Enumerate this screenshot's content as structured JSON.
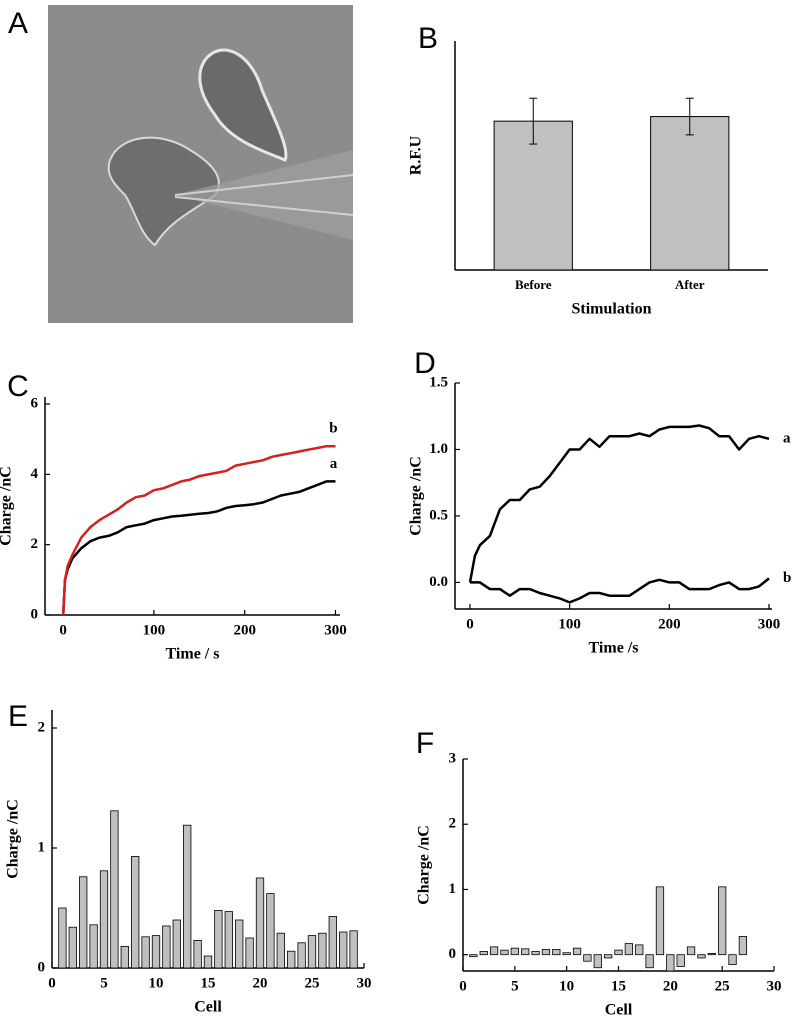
{
  "chart_data": [
    {
      "type": "image",
      "label": "A"
    },
    {
      "type": "bar",
      "label": "B",
      "ylabel": "R.F.U",
      "xlabel": "Stimulation",
      "categories": [
        "Before",
        "After"
      ],
      "values": [
        1.3,
        1.34
      ],
      "errors": [
        0.2,
        0.16
      ],
      "color": "#c0c0c0",
      "ylim": [
        0,
        2
      ]
    },
    {
      "type": "line",
      "label": "C",
      "xlabel": "Time / s",
      "ylabel": "Charge /nC",
      "xlim": [
        -20,
        305
      ],
      "ylim": [
        0,
        6.2
      ],
      "xticks": [
        0,
        100,
        200,
        300
      ],
      "yticks": [
        0,
        2,
        4,
        6
      ],
      "x": [
        0,
        2,
        5,
        10,
        20,
        30,
        40,
        50,
        60,
        70,
        80,
        90,
        100,
        110,
        120,
        130,
        140,
        150,
        160,
        170,
        180,
        190,
        200,
        210,
        220,
        230,
        240,
        250,
        260,
        270,
        280,
        290,
        300
      ],
      "series": [
        {
          "name": "a",
          "color": "#000000",
          "values": [
            0,
            1.0,
            1.3,
            1.6,
            1.9,
            2.1,
            2.2,
            2.25,
            2.35,
            2.5,
            2.55,
            2.6,
            2.7,
            2.75,
            2.8,
            2.82,
            2.85,
            2.88,
            2.9,
            2.95,
            3.05,
            3.1,
            3.12,
            3.15,
            3.2,
            3.3,
            3.4,
            3.45,
            3.5,
            3.6,
            3.7,
            3.8,
            3.8
          ]
        },
        {
          "name": "b",
          "color": "#d62020",
          "values": [
            0,
            1.0,
            1.4,
            1.7,
            2.2,
            2.5,
            2.7,
            2.85,
            3.0,
            3.2,
            3.35,
            3.4,
            3.55,
            3.6,
            3.7,
            3.8,
            3.85,
            3.95,
            4.0,
            4.05,
            4.1,
            4.25,
            4.3,
            4.35,
            4.4,
            4.5,
            4.55,
            4.6,
            4.65,
            4.7,
            4.75,
            4.8,
            4.8
          ]
        }
      ]
    },
    {
      "type": "line",
      "label": "D",
      "xlabel": "Time /s",
      "ylabel": "Charge /nC",
      "xlim": [
        -15,
        303
      ],
      "ylim": [
        -0.2,
        1.5
      ],
      "xticks": [
        0,
        100,
        200,
        300
      ],
      "yticks": [
        {
          "value": 0,
          "label": "0.0"
        },
        {
          "value": 0.5,
          "label": "0.5"
        },
        {
          "value": 1,
          "label": "1.0"
        },
        {
          "value": 1.5,
          "label": "1.5"
        }
      ],
      "x": [
        0,
        5,
        10,
        20,
        30,
        40,
        50,
        60,
        70,
        80,
        90,
        100,
        110,
        120,
        130,
        140,
        150,
        160,
        170,
        180,
        190,
        200,
        210,
        220,
        230,
        240,
        250,
        260,
        270,
        280,
        290,
        300
      ],
      "series": [
        {
          "name": "a",
          "color": "#000000",
          "values": [
            0,
            0.2,
            0.28,
            0.35,
            0.55,
            0.62,
            0.62,
            0.7,
            0.72,
            0.8,
            0.9,
            1.0,
            1.0,
            1.08,
            1.02,
            1.1,
            1.1,
            1.1,
            1.12,
            1.1,
            1.15,
            1.17,
            1.17,
            1.17,
            1.18,
            1.16,
            1.1,
            1.1,
            1.0,
            1.08,
            1.1,
            1.08
          ]
        },
        {
          "name": "b",
          "color": "#000000",
          "values": [
            0,
            0,
            0,
            -0.05,
            -0.05,
            -0.1,
            -0.05,
            -0.05,
            -0.08,
            -0.1,
            -0.12,
            -0.15,
            -0.12,
            -0.08,
            -0.08,
            -0.1,
            -0.1,
            -0.1,
            -0.05,
            0.0,
            0.02,
            0.0,
            0.0,
            -0.05,
            -0.05,
            -0.05,
            -0.02,
            0.0,
            -0.05,
            -0.05,
            -0.03,
            0.03
          ]
        }
      ]
    },
    {
      "type": "bar",
      "label": "E",
      "xlabel": "Cell",
      "ylabel": "Charge /nC",
      "xlim": [
        0,
        30
      ],
      "ylim": [
        0,
        2.15
      ],
      "xticks": [
        0,
        5,
        10,
        15,
        20,
        25,
        30
      ],
      "yticks": [
        0,
        1,
        2
      ],
      "color": "#c0c0c0",
      "x": [
        1,
        2,
        3,
        4,
        5,
        6,
        7,
        8,
        9,
        10,
        11,
        12,
        13,
        14,
        15,
        16,
        17,
        18,
        19,
        20,
        21,
        22,
        23,
        24,
        25,
        26,
        27,
        28,
        29
      ],
      "values": [
        0.5,
        0.34,
        0.76,
        0.36,
        0.81,
        1.31,
        0.18,
        0.93,
        0.26,
        0.27,
        0.35,
        0.4,
        1.19,
        0.23,
        0.1,
        0.48,
        0.47,
        0.4,
        0.25,
        0.75,
        0.62,
        0.29,
        0.14,
        0.21,
        0.27,
        0.29,
        0.43,
        0.3,
        0.31
      ]
    },
    {
      "type": "bar",
      "label": "F",
      "xlabel": "Cell",
      "ylabel": "Charge /nC",
      "xlim": [
        0,
        30
      ],
      "ylim": [
        -0.25,
        3
      ],
      "xticks": [
        0,
        5,
        10,
        15,
        20,
        25,
        30
      ],
      "yticks": [
        0,
        1,
        2,
        3
      ],
      "color": "#c0c0c0",
      "x": [
        1,
        2,
        3,
        4,
        5,
        6,
        7,
        8,
        9,
        10,
        11,
        12,
        13,
        14,
        15,
        16,
        17,
        18,
        19,
        20,
        21,
        22,
        23,
        24,
        25,
        26,
        27
      ],
      "values": [
        -0.03,
        0.05,
        0.12,
        0.07,
        0.1,
        0.09,
        0.05,
        0.08,
        0.08,
        0.03,
        0.1,
        -0.1,
        -0.2,
        -0.05,
        0.07,
        0.17,
        0.15,
        -0.2,
        1.04,
        -0.25,
        -0.18,
        0.12,
        -0.05,
        0.02,
        1.04,
        -0.15,
        0.28
      ]
    }
  ]
}
